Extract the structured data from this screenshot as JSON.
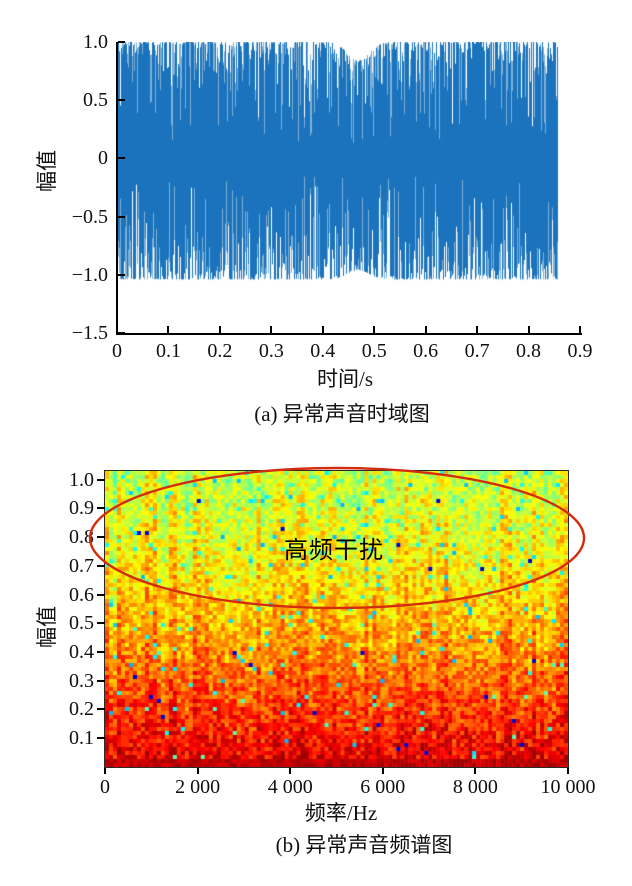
{
  "figure": {
    "background": "#ffffff",
    "text_color": "#111111"
  },
  "chart_data": [
    {
      "id": "time-domain",
      "type": "line",
      "caption": "(a) 异常声音时域图",
      "xlabel": "时间/s",
      "ylabel": "幅值",
      "xlim": [
        0,
        0.9
      ],
      "ylim": [
        -1.5,
        1.0
      ],
      "grid": false,
      "xticks": {
        "values": [
          0,
          0.1,
          0.2,
          0.3,
          0.4,
          0.5,
          0.6,
          0.7,
          0.8,
          0.9
        ],
        "labels": [
          "0",
          "0.1",
          "0.2",
          "0.3",
          "0.4",
          "0.5",
          "0.6",
          "0.7",
          "0.8",
          "0.9"
        ]
      },
      "yticks": {
        "values": [
          1.0,
          0.5,
          0,
          -0.5,
          -1.0,
          -1.5
        ],
        "labels": [
          "1.0",
          "0.5",
          "0",
          "−0.5",
          "−1.0",
          "−1.5"
        ]
      },
      "series": [
        {
          "name": "abnormal-sound-waveform",
          "color": "#1a73bc",
          "color_light": "#7fb0d6",
          "x_start": 0,
          "x_end": 0.855,
          "amplitude_max": 1.0,
          "amplitude_min": -1.04,
          "description": "dense broadband noise waveform oscillating between −1 and +1 over 0–0.855 s"
        }
      ]
    },
    {
      "id": "spectrogram",
      "type": "heatmap",
      "caption": "(b) 异常声音频谱图",
      "xlabel": "频率/Hz",
      "ylabel": "幅值",
      "xlim": [
        0,
        10000
      ],
      "ylim": [
        0,
        1.03
      ],
      "colormap": "jet",
      "intensity_profile": "high energy (red/orange) at low amplitude values, yellow-green with cyan speckles toward amplitude 1.0",
      "xticks": {
        "values": [
          0,
          2000,
          4000,
          6000,
          8000,
          10000
        ],
        "labels": [
          "0",
          "2 000",
          "4 000",
          "6 000",
          "8 000",
          "10 000"
        ]
      },
      "yticks": {
        "values": [
          1.0,
          0.9,
          0.8,
          0.7,
          0.6,
          0.5,
          0.4,
          0.3,
          0.2,
          0.1
        ],
        "labels": [
          "1.0",
          "0.9",
          "0.8",
          "0.7",
          "0.6",
          "0.5",
          "0.4",
          "0.3",
          "0.2",
          "0.1"
        ]
      },
      "annotation": {
        "label": "高频干扰",
        "shape": "ellipse",
        "color": "#d42d0e",
        "center_data": [
          5000,
          0.8
        ],
        "radius_data": [
          5330,
          0.24
        ]
      }
    }
  ]
}
